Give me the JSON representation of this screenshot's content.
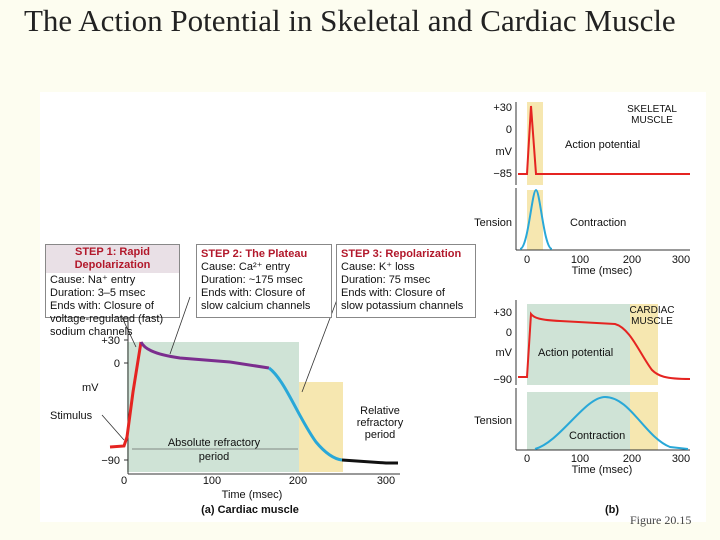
{
  "title": "The Action Potential in Skeletal and Cardiac Muscle",
  "figure_label": "Figure 20.15",
  "steps": [
    {
      "heading": "STEP 1: Rapid Depolarization",
      "lines": [
        "Cause: Na⁺ entry",
        "Duration: 3–5 msec",
        "Ends with: Closure of",
        "voltage-regulated (fast)",
        "sodium channels"
      ]
    },
    {
      "heading": "STEP 2: The Plateau",
      "lines": [
        "Cause: Ca²⁺ entry",
        "Duration: ~175 msec",
        "Ends with: Closure of",
        "slow calcium channels"
      ]
    },
    {
      "heading": "STEP 3: Repolarization",
      "lines": [
        "Cause: K⁺ loss",
        "Duration: 75 msec",
        "Ends with: Closure of",
        "slow potassium channels"
      ]
    }
  ],
  "panel_a": {
    "caption": "(a) Cardiac muscle",
    "xlabel": "Time (msec)",
    "ylabel": "mV",
    "xticks": [
      "0",
      "100",
      "200",
      "300"
    ],
    "yticks": [
      "+30",
      "0",
      "−90"
    ],
    "stimulus": "Stimulus",
    "absolute_refractory": "Absolute refractory period",
    "relative_refractory": "Relative refractory period"
  },
  "panel_b": {
    "caption": "(b)",
    "skeletal": {
      "label": "SKELETAL MUSCLE",
      "yticks": [
        "+30",
        "0",
        "−85"
      ],
      "ylabel": "mV",
      "ap_label": "Action potential",
      "tension": "Tension",
      "contraction": "Contraction",
      "xticks": [
        "0",
        "100",
        "200",
        "300"
      ],
      "xlabel": "Time (msec)"
    },
    "cardiac": {
      "label": "CARDIAC MUSCLE",
      "yticks": [
        "+30",
        "0",
        "−90"
      ],
      "ylabel": "mV",
      "ap_label": "Action potential",
      "tension": "Tension",
      "contraction": "Contraction",
      "xticks": [
        "0",
        "100",
        "200",
        "300"
      ],
      "xlabel": "Time (msec)"
    }
  },
  "colors": {
    "depolarization": "#e52421",
    "plateau": "#7b2d8e",
    "repolarization": "#29a8d8",
    "contraction": "#29a8d8",
    "absolute_refractory": "#cfe3d6",
    "relative_refractory": "#f6e7b0"
  }
}
